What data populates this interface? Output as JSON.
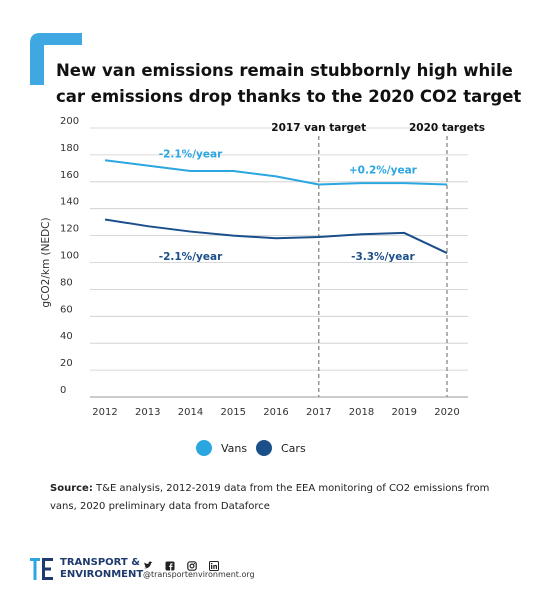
{
  "title": "New van emissions remain stubbornly high while car emissions drop thanks to the 2020 CO2 target",
  "colors": {
    "vans": "#2aa6e0",
    "cars": "#1b4f8a",
    "accent": "#3fa8e2",
    "grid": "#cccccc",
    "target_line": "#888888"
  },
  "chart_data": {
    "type": "line",
    "x": [
      "2012",
      "2013",
      "2014",
      "2015",
      "2016",
      "2017",
      "2018",
      "2019",
      "2020"
    ],
    "series": [
      {
        "name": "Vans",
        "values": [
          176,
          172,
          168,
          168,
          164,
          158,
          159,
          159,
          158
        ]
      },
      {
        "name": "Cars",
        "values": [
          132,
          127,
          123,
          120,
          118,
          119,
          121,
          122,
          107
        ]
      }
    ],
    "xlabel": "",
    "ylabel": "gCO2/km (NEDC)",
    "ylim": [
      0,
      200
    ],
    "yticks": [
      0,
      20,
      40,
      60,
      80,
      100,
      120,
      140,
      160,
      180,
      200
    ],
    "grid": true,
    "legend": "bottom",
    "target_lines": [
      {
        "x": "2017",
        "label": "2017 van target"
      },
      {
        "x": "2020",
        "label": "2020 targets"
      }
    ],
    "annotations": [
      {
        "series": "Vans",
        "x": "2014",
        "y": 178,
        "text": "-2.1%/year"
      },
      {
        "series": "Vans",
        "x": "2018.5",
        "y": 166,
        "text": "+0.2%/year"
      },
      {
        "series": "Cars",
        "x": "2014",
        "y": 102,
        "text": "-2.1%/year"
      },
      {
        "series": "Cars",
        "x": "2018.5",
        "y": 102,
        "text": "-3.3%/year"
      }
    ]
  },
  "legend": {
    "vans_label": "Vans",
    "cars_label": "Cars"
  },
  "source": {
    "label": "Source:",
    "text": "T&E analysis, 2012-2019 data from the EEA monitoring of CO2 emissions from vans, 2020 preliminary data from Dataforce"
  },
  "footer": {
    "org_line1": "TRANSPORT &",
    "org_line2": "ENVIRONMENT",
    "social_icons": [
      "twitter-icon",
      "facebook-icon",
      "instagram-icon",
      "linkedin-icon"
    ],
    "handle": "@transportenvironment.org"
  }
}
